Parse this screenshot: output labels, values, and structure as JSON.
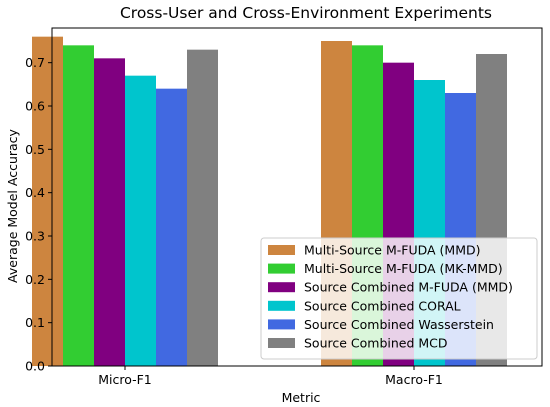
{
  "chart_data": {
    "type": "bar",
    "title": "Cross-User and Cross-Environment Experiments",
    "xlabel": "Metric",
    "ylabel": "Average Model Accuracy",
    "categories": [
      "Micro-F1",
      "Macro-F1"
    ],
    "ylim": [
      0,
      0.78
    ],
    "yticks": [
      0.0,
      0.1,
      0.2,
      0.3,
      0.4,
      0.5,
      0.6,
      0.7
    ],
    "grid": false,
    "legend_position": "bottom-right",
    "series": [
      {
        "name": "Multi-Source M-FUDA (MMD)",
        "values": [
          0.76,
          0.75
        ],
        "color": "#cd853f"
      },
      {
        "name": "Multi-Source M-FUDA (MK-MMD)",
        "values": [
          0.74,
          0.74
        ],
        "color": "#32cd32"
      },
      {
        "name": "Source Combined M-FUDA (MMD)",
        "values": [
          0.71,
          0.7
        ],
        "color": "#800080"
      },
      {
        "name": "Source Combined CORAL",
        "values": [
          0.67,
          0.66
        ],
        "color": "#00c5cd"
      },
      {
        "name": "Source Combined Wasserstein",
        "values": [
          0.64,
          0.63
        ],
        "color": "#4169e1"
      },
      {
        "name": "Source Combined MCD",
        "values": [
          0.73,
          0.72
        ],
        "color": "#808080"
      }
    ]
  }
}
